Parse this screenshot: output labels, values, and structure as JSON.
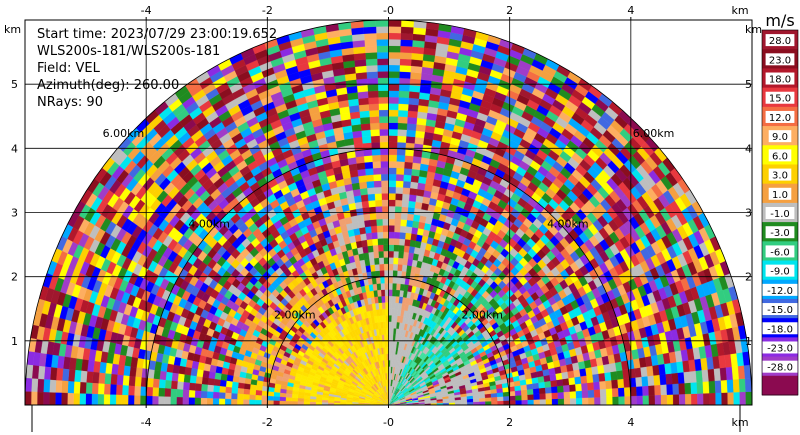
{
  "chart_data": {
    "type": "heatmap",
    "subtype": "ppi-sector",
    "info": {
      "start_time": "Start time: 2023/07/29 23:00:19.652",
      "instrument": "WLS200s-181/WLS200s-181",
      "field": "Field: VEL",
      "azimuth": "Azimuth(deg): 260.00",
      "nrays": "NRays: 90"
    },
    "axis_unit": "km",
    "xlim": [
      -6,
      6
    ],
    "ylim": [
      0,
      6
    ],
    "xticks": [
      -4,
      -2,
      0,
      2,
      4
    ],
    "yticks": [
      1,
      2,
      3,
      4,
      5
    ],
    "x_tick_labels": [
      "-4",
      "-2",
      "-0",
      "2",
      "4"
    ],
    "y_tick_labels": [
      "1",
      "2",
      "3",
      "4",
      "5"
    ],
    "range_rings": [
      {
        "radius": 2,
        "label": "2.00km"
      },
      {
        "radius": 4,
        "label": "4.00km"
      },
      {
        "radius": 6,
        "label": "6.00km"
      }
    ],
    "grid": true,
    "colorbar": {
      "unit": "m/s",
      "labels": [
        "28.0",
        "23.0",
        "18.0",
        "15.0",
        "12.0",
        "9.0",
        "6.0",
        "3.0",
        "1.0",
        "-1.0",
        "-3.0",
        "-6.0",
        "-9.0",
        "-12.0",
        "-15.0",
        "-18.0",
        "-23.0",
        "-28.0"
      ],
      "colors": [
        "#a0172e",
        "#8a0e1f",
        "#b2182b",
        "#e8383f",
        "#f46d43",
        "#fdae61",
        "#ffff00",
        "#fdd000",
        "#f5a040",
        "#bebebe",
        "#208b20",
        "#32cd80",
        "#00e5ee",
        "#00a8ff",
        "#4169e1",
        "#0000ff",
        "#8b2be2",
        "#a03cc8",
        "#8b0a50"
      ]
    }
  }
}
